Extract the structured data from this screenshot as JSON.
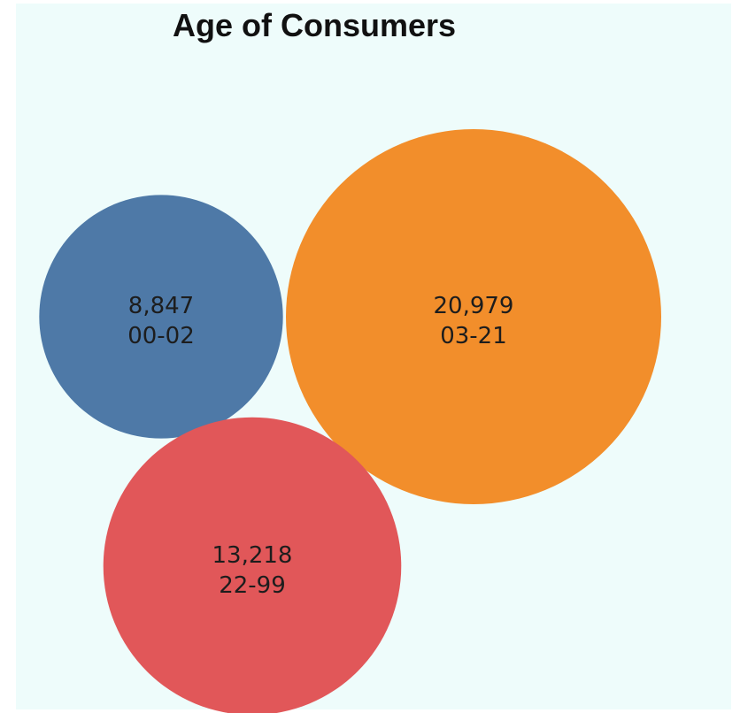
{
  "chart_data": {
    "type": "bubble",
    "title": "Age of Consumers",
    "bubbles": [
      {
        "category": "00-02",
        "value": 8847,
        "value_label": "8,847",
        "color": "#4e79a7"
      },
      {
        "category": "03-21",
        "value": 20979,
        "value_label": "20,979",
        "color": "#f28e2b"
      },
      {
        "category": "22-99",
        "value": 13218,
        "value_label": "13,218",
        "color": "#e15759"
      }
    ],
    "background_color": "#eefcfb"
  }
}
